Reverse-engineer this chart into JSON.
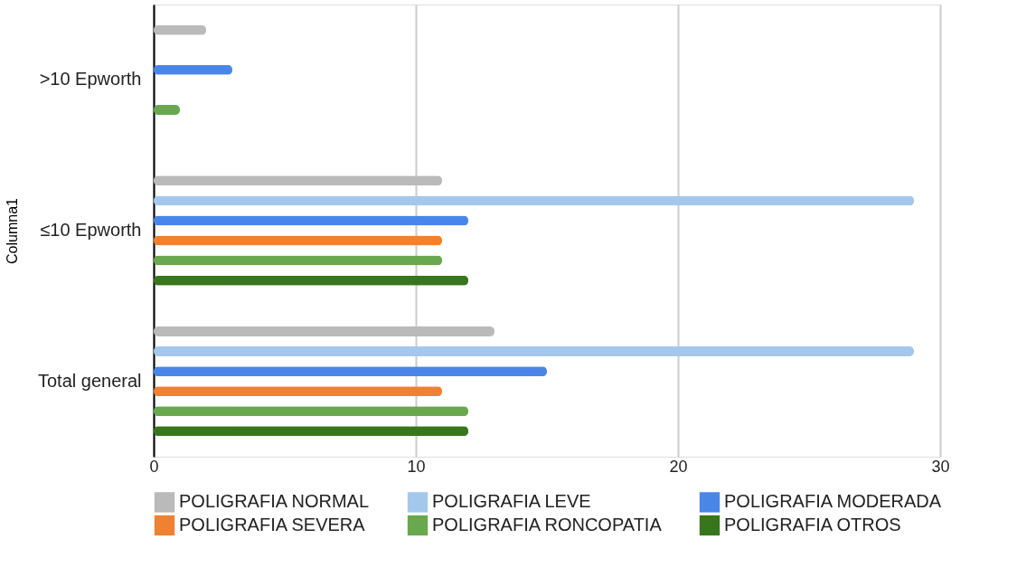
{
  "chart_data": {
    "type": "bar",
    "orientation": "horizontal",
    "ylabel": "Columna1",
    "categories": [
      ">10 Epworth",
      "≤10 Epworth",
      "Total general"
    ],
    "series": [
      {
        "name": "POLIGRAFIA NORMAL",
        "color": "#bababa",
        "values": [
          2,
          11,
          13
        ]
      },
      {
        "name": "POLIGRAFIA LEVE",
        "color": "#a4c8ec",
        "values": [
          null,
          29,
          29
        ]
      },
      {
        "name": "POLIGRAFIA MODERADA",
        "color": "#4a86e8",
        "values": [
          3,
          12,
          15
        ]
      },
      {
        "name": "POLIGRAFIA SEVERA",
        "color": "#ef8133",
        "values": [
          null,
          11,
          11
        ]
      },
      {
        "name": "POLIGRAFIA RONCOPATIA",
        "color": "#6aa84f",
        "values": [
          1,
          11,
          12
        ]
      },
      {
        "name": "POLIGRAFIA OTROS",
        "color": "#38761d",
        "values": [
          null,
          12,
          12
        ]
      }
    ],
    "xlim": [
      0,
      30
    ],
    "xticks": [
      0,
      10,
      20,
      30
    ],
    "grid": "x",
    "legend": "bottom"
  }
}
